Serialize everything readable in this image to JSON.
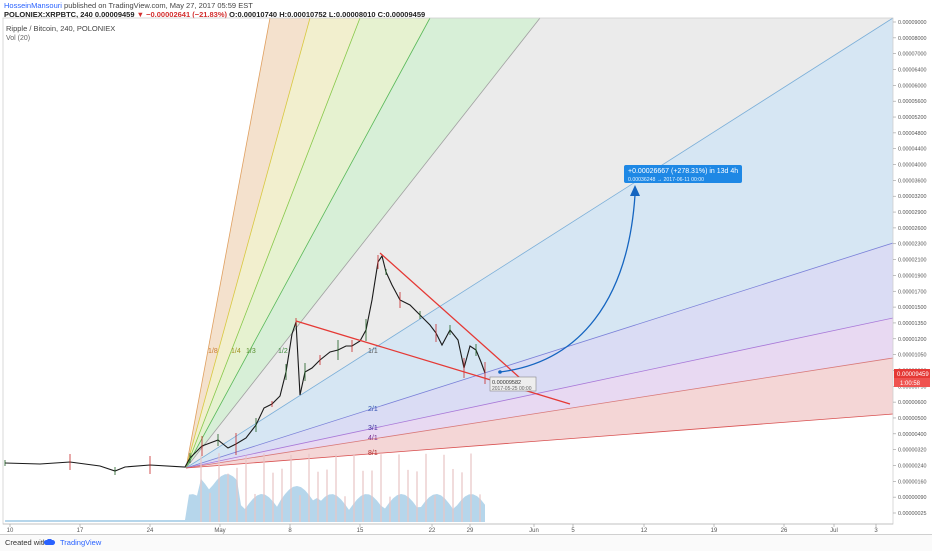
{
  "header": {
    "author": "HosseinMansouri",
    "published_text": "published on TradingView.com, May 27, 2017 05:59 EST",
    "symbol_line": "POLONIEX:XRPBTC, 240",
    "last_value": "0.00009459",
    "change": "−0.00002641 (−21.83%)",
    "open": "O:0.00010740",
    "high": "H:0.00010752",
    "low": "L:0.00008010",
    "close": "C:0.00009459"
  },
  "legend": {
    "title": "Ripple / Bitcoin, 240, POLONIEX",
    "volume": "Vol (20)"
  },
  "footer": {
    "created": "Created with",
    "brand": "TradingView"
  },
  "chart_data": {
    "type": "line",
    "title": "Ripple / Bitcoin, 240, POLONIEX",
    "y_labels": [
      "0.00009000",
      "0.00008000",
      "0.00007000",
      "0.00006400",
      "0.00006000",
      "0.00005600",
      "0.00005200",
      "0.00004800",
      "0.00004400",
      "0.00004000",
      "0.00003600",
      "0.00003200",
      "0.00002900",
      "0.00002600",
      "0.00002300",
      "0.00002100",
      "0.00001900",
      "0.00001700",
      "0.00001500",
      "0.00001350",
      "0.00001200",
      "0.00001050",
      "0.00000900",
      "0.00000750",
      "0.00000600",
      "0.00000500",
      "0.00000400",
      "0.00000320",
      "0.00000240",
      "0.00000160",
      "0.00000090",
      "0.00000025"
    ],
    "x_labels": [
      "10",
      "17",
      "24",
      "May",
      "8",
      "15",
      "22",
      "29",
      "Jun",
      "5",
      "12",
      "19",
      "26",
      "Jul",
      "3"
    ],
    "price_marker": "0.00009459",
    "countdown": "1:00:58",
    "gann_labels": [
      "1/8",
      "1/4",
      "1/3",
      "1/2",
      "1/1",
      "2/1",
      "3/1",
      "4/1",
      "8/1"
    ],
    "projection": {
      "text": "+0.00026667 (+278.31%) in 13d 4h",
      "sub": "0.00036248  →  2017-06-11  00:00"
    },
    "anchor": {
      "value": "0.00009582",
      "date": "2017-05-25 00:00"
    },
    "price_series": [
      [
        "Apr 10",
        2.44e-05
      ],
      [
        "Apr 14",
        2.46e-05
      ],
      [
        "Apr 18",
        2.45e-05
      ],
      [
        "Apr 20",
        2.28e-05
      ],
      [
        "Apr 22",
        2.39e-05
      ],
      [
        "Apr 24",
        2.4e-05
      ],
      [
        "Apr 26",
        2.46e-05
      ],
      [
        "Apr 28",
        2.56e-05
      ],
      [
        "Apr 29",
        3e-05
      ],
      [
        "May 1",
        3.1e-05
      ],
      [
        "May 3",
        3.3e-05
      ],
      [
        "May 5",
        4e-05
      ],
      [
        "May 7",
        6.8e-05
      ],
      [
        "May 8",
        9.6e-05
      ],
      [
        "May 9",
        8.8e-05
      ],
      [
        "May 11",
        0.000105
      ],
      [
        "May 13",
        0.000118
      ],
      [
        "May 14",
        0.00013
      ],
      [
        "May 15",
        0.000142
      ],
      [
        "May 16",
        0.0002
      ],
      [
        "May 17",
        0.000238
      ],
      [
        "May 18",
        0.00021
      ],
      [
        "May 19",
        0.000185
      ],
      [
        "May 20",
        0.000172
      ],
      [
        "May 21",
        0.00016
      ],
      [
        "May 22",
        0.000145
      ],
      [
        "May 23",
        0.000152
      ],
      [
        "May 24",
        0.00012
      ],
      [
        "May 25",
        9.58e-05
      ],
      [
        "May 26",
        0.000115
      ],
      [
        "May 27",
        9.46e-05
      ]
    ]
  }
}
